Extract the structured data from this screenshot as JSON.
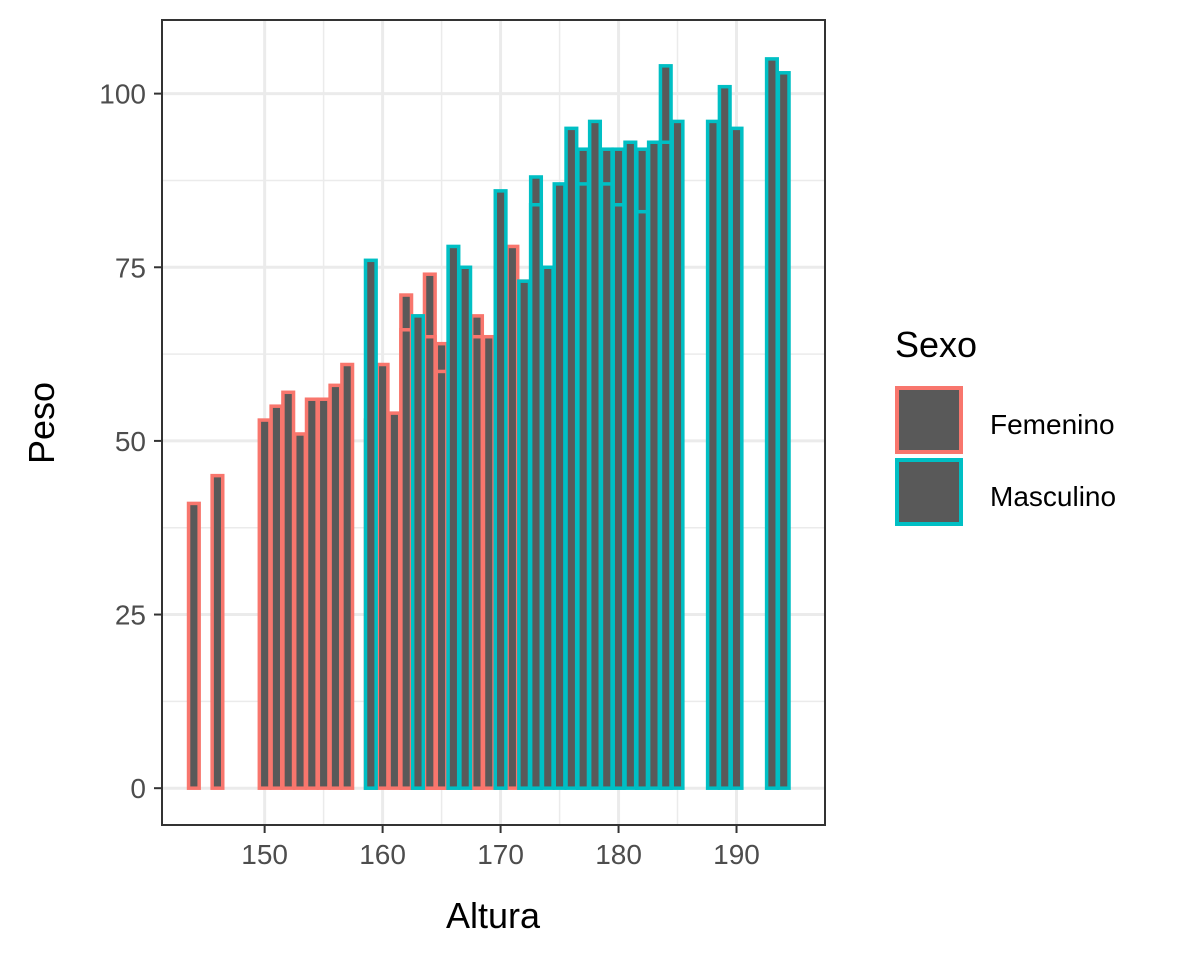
{
  "chart_data": {
    "type": "bar",
    "xlabel": "Altura",
    "ylabel": "Peso",
    "xlim": [
      141.3,
      197.5
    ],
    "ylim": [
      -5.3,
      110.6
    ],
    "xticks": [
      150,
      160,
      170,
      180,
      190
    ],
    "yticks": [
      0,
      25,
      50,
      75,
      100
    ],
    "grid": true,
    "bar_fill": "#595959",
    "legend": {
      "title": "Sexo",
      "placement": "right",
      "entries": [
        {
          "label": "Femenino",
          "color": "#F8766D"
        },
        {
          "label": "Masculino",
          "color": "#00BFC4"
        }
      ]
    },
    "series": [
      {
        "name": "Femenino",
        "color": "#F8766D",
        "points": [
          [
            144,
            41
          ],
          [
            146,
            45
          ],
          [
            150,
            53
          ],
          [
            151,
            55
          ],
          [
            152,
            57
          ],
          [
            153,
            51
          ],
          [
            154,
            56
          ],
          [
            155,
            56
          ],
          [
            156,
            58
          ],
          [
            157,
            61
          ],
          [
            159,
            53
          ],
          [
            160,
            61
          ],
          [
            161,
            54
          ],
          [
            162,
            71
          ],
          [
            162,
            66
          ],
          [
            163,
            68
          ],
          [
            163,
            64
          ],
          [
            164,
            74
          ],
          [
            164,
            59
          ],
          [
            164,
            65
          ],
          [
            165,
            64
          ],
          [
            165,
            60
          ],
          [
            166,
            58
          ],
          [
            168,
            68
          ],
          [
            168,
            65
          ],
          [
            169,
            65
          ],
          [
            170,
            76
          ],
          [
            171,
            78
          ],
          [
            172,
            73
          ]
        ]
      },
      {
        "name": "Masculino",
        "color": "#00BFC4",
        "points": [
          [
            159,
            76
          ],
          [
            163,
            68
          ],
          [
            166,
            78
          ],
          [
            167,
            75
          ],
          [
            170,
            86
          ],
          [
            172,
            73
          ],
          [
            173,
            88
          ],
          [
            173,
            84
          ],
          [
            174,
            75
          ],
          [
            175,
            87
          ],
          [
            176,
            95
          ],
          [
            177,
            92
          ],
          [
            177,
            87
          ],
          [
            178,
            96
          ],
          [
            179,
            92
          ],
          [
            179,
            87
          ],
          [
            180,
            92
          ],
          [
            180,
            84
          ],
          [
            181,
            93
          ],
          [
            182,
            92
          ],
          [
            182,
            83
          ],
          [
            183,
            93
          ],
          [
            184,
            104
          ],
          [
            184,
            93
          ],
          [
            185,
            96
          ],
          [
            188,
            96
          ],
          [
            189,
            101
          ],
          [
            190,
            95
          ],
          [
            193,
            105
          ],
          [
            194,
            103
          ]
        ]
      }
    ]
  }
}
